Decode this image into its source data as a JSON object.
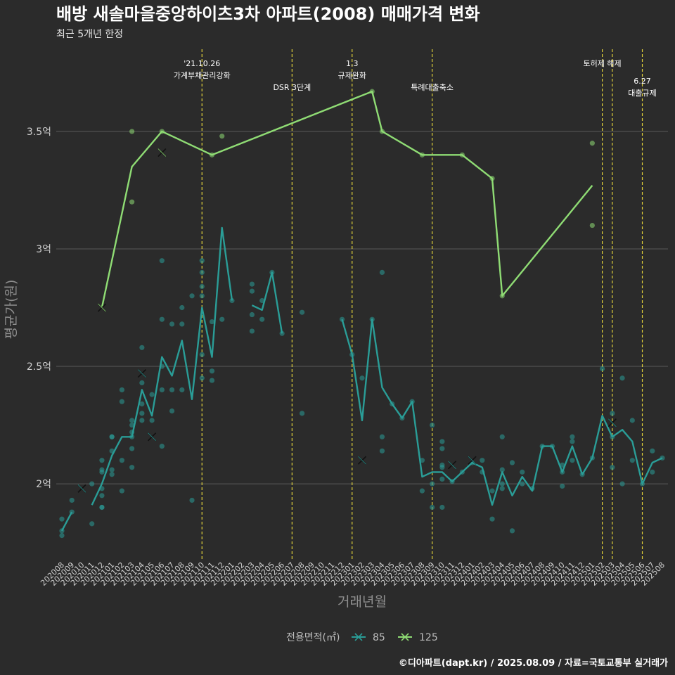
{
  "chart_data": {
    "type": "line",
    "title": "배방 새솔마을중앙하이츠3차 아파트(2008) 매매가격 변화",
    "subtitle": "최근 5개년 한정",
    "xlabel": "거래년월",
    "ylabel": "평균가(원)",
    "ylim": [
      1.68,
      3.85
    ],
    "grid": true,
    "yticks": [
      {
        "v": 2.0,
        "label": "2억"
      },
      {
        "v": 2.5,
        "label": "2.5억"
      },
      {
        "v": 3.0,
        "label": "3억"
      },
      {
        "v": 3.5,
        "label": "3.5억"
      }
    ],
    "x_start": "202008",
    "month_count": 61,
    "x_labels": [
      "202008",
      "202009",
      "202010",
      "202011",
      "202012",
      "202101",
      "202102",
      "202103",
      "202104",
      "202105",
      "202106",
      "202107",
      "202108",
      "202109",
      "202110",
      "202111",
      "202112",
      "202201",
      "202202",
      "202203",
      "202204",
      "202205",
      "202206",
      "202207",
      "202208",
      "202209",
      "202210",
      "202211",
      "202212",
      "202301",
      "202302",
      "202303",
      "202304",
      "202305",
      "202306",
      "202307",
      "202308",
      "202309",
      "202310",
      "202311",
      "202312",
      "202401",
      "202402",
      "202403",
      "202404",
      "202405",
      "202406",
      "202407",
      "202408",
      "202409",
      "202410",
      "202411",
      "202412",
      "202501",
      "202502",
      "202503",
      "202504",
      "202505",
      "202506",
      "202507",
      "202508"
    ],
    "legend": {
      "title": "전용면적(㎡)",
      "placement": "bottom",
      "entries": [
        {
          "label": "85",
          "color": "#2a9d97"
        },
        {
          "label": "125",
          "color": "#8fdc74"
        }
      ]
    },
    "events": [
      {
        "x": "202110",
        "lines": [
          "'21.10.26",
          "가계부채관리강화"
        ],
        "row": 0
      },
      {
        "x": "202207",
        "lines": [
          "DSR 3단계"
        ],
        "row": 1
      },
      {
        "x": "202301",
        "lines": [
          "1.3",
          "규제완화"
        ],
        "row": 0
      },
      {
        "x": "202309",
        "lines": [
          "특례대출축소"
        ],
        "row": 1
      },
      {
        "x": "202502",
        "lines": [
          "토허제 해제"
        ],
        "row": 0
      },
      {
        "x": "202503",
        "lines": [
          ""
        ],
        "row": 0
      },
      {
        "x": "202506",
        "lines": [
          "6.27",
          "대출규제"
        ],
        "row": 2
      }
    ],
    "series": [
      {
        "name": "85",
        "color": "#2a9d97",
        "line": [
          [
            [
              "202008",
              1.8
            ],
            [
              "202009",
              1.88
            ]
          ],
          [
            [
              "202011",
              1.91
            ],
            [
              "202012",
              2.0
            ],
            [
              "202101",
              2.12
            ],
            [
              "202102",
              2.2
            ],
            [
              "202103",
              2.2
            ],
            [
              "202104",
              2.4
            ],
            [
              "202105",
              2.29
            ],
            [
              "202106",
              2.54
            ],
            [
              "202107",
              2.46
            ],
            [
              "202108",
              2.61
            ],
            [
              "202109",
              2.36
            ],
            [
              "202110",
              2.75
            ],
            [
              "202111",
              2.54
            ],
            [
              "202112",
              3.09
            ],
            [
              "202201",
              2.78
            ]
          ],
          [
            [
              "202203",
              2.76
            ],
            [
              "202204",
              2.74
            ],
            [
              "202205",
              2.9
            ],
            [
              "202206",
              2.64
            ]
          ],
          [
            [
              "202212",
              2.7
            ],
            [
              "202301",
              2.55
            ],
            [
              "202302",
              2.27
            ],
            [
              "202303",
              2.7
            ],
            [
              "202304",
              2.41
            ],
            [
              "202305",
              2.34
            ],
            [
              "202306",
              2.28
            ],
            [
              "202307",
              2.35
            ],
            [
              "202308",
              2.03
            ],
            [
              "202309",
              2.05
            ],
            [
              "202310",
              2.05
            ],
            [
              "202311",
              2.01
            ],
            [
              "202312",
              2.05
            ],
            [
              "202401",
              2.09
            ],
            [
              "202402",
              2.07
            ],
            [
              "202403",
              1.91
            ],
            [
              "202404",
              2.05
            ],
            [
              "202405",
              1.95
            ],
            [
              "202406",
              2.03
            ],
            [
              "202407",
              1.97
            ],
            [
              "202408",
              2.16
            ],
            [
              "202409",
              2.16
            ],
            [
              "202410",
              2.05
            ],
            [
              "202411",
              2.16
            ],
            [
              "202412",
              2.04
            ],
            [
              "202501",
              2.11
            ],
            [
              "202502",
              2.29
            ],
            [
              "202503",
              2.2
            ],
            [
              "202504",
              2.23
            ],
            [
              "202505",
              2.18
            ],
            [
              "202506",
              2.0
            ],
            [
              "202507",
              2.09
            ],
            [
              "202508",
              2.11
            ]
          ]
        ],
        "points": [
          [
            "202008",
            1.78
          ],
          [
            "202008",
            1.8
          ],
          [
            "202008",
            1.85
          ],
          [
            "202009",
            1.88
          ],
          [
            "202009",
            1.93
          ],
          [
            "202011",
            2.0
          ],
          [
            "202011",
            1.83
          ],
          [
            "202012",
            1.9
          ],
          [
            "202012",
            1.9
          ],
          [
            "202012",
            1.95
          ],
          [
            "202012",
            1.98
          ],
          [
            "202012",
            2.05
          ],
          [
            "202012",
            2.06
          ],
          [
            "202012",
            2.1
          ],
          [
            "202101",
            2.04
          ],
          [
            "202101",
            2.06
          ],
          [
            "202101",
            2.14
          ],
          [
            "202101",
            2.2
          ],
          [
            "202101",
            2.2
          ],
          [
            "202102",
            1.97
          ],
          [
            "202102",
            2.1
          ],
          [
            "202102",
            2.35
          ],
          [
            "202102",
            2.4
          ],
          [
            "202103",
            2.07
          ],
          [
            "202103",
            2.15
          ],
          [
            "202103",
            2.2
          ],
          [
            "202103",
            2.22
          ],
          [
            "202103",
            2.25
          ],
          [
            "202103",
            2.27
          ],
          [
            "202104",
            2.27
          ],
          [
            "202104",
            2.3
          ],
          [
            "202104",
            2.34
          ],
          [
            "202104",
            2.43
          ],
          [
            "202104",
            2.58
          ],
          [
            "202105",
            2.27
          ],
          [
            "202105",
            2.38
          ],
          [
            "202106",
            2.16
          ],
          [
            "202106",
            2.4
          ],
          [
            "202106",
            2.5
          ],
          [
            "202106",
            2.7
          ],
          [
            "202106",
            2.95
          ],
          [
            "202107",
            2.31
          ],
          [
            "202107",
            2.4
          ],
          [
            "202107",
            2.68
          ],
          [
            "202108",
            2.4
          ],
          [
            "202108",
            2.68
          ],
          [
            "202108",
            2.75
          ],
          [
            "202109",
            1.93
          ],
          [
            "202109",
            2.8
          ],
          [
            "202110",
            2.45
          ],
          [
            "202110",
            2.55
          ],
          [
            "202110",
            2.8
          ],
          [
            "202110",
            2.84
          ],
          [
            "202110",
            2.9
          ],
          [
            "202110",
            2.95
          ],
          [
            "202111",
            2.44
          ],
          [
            "202111",
            2.48
          ],
          [
            "202111",
            2.69
          ],
          [
            "202112",
            2.7
          ],
          [
            "202201",
            2.78
          ],
          [
            "202203",
            2.65
          ],
          [
            "202203",
            2.72
          ],
          [
            "202203",
            2.82
          ],
          [
            "202203",
            2.85
          ],
          [
            "202204",
            2.7
          ],
          [
            "202204",
            2.78
          ],
          [
            "202205",
            2.9
          ],
          [
            "202206",
            2.64
          ],
          [
            "202208",
            2.3
          ],
          [
            "202208",
            2.73
          ],
          [
            "202212",
            2.7
          ],
          [
            "202301",
            2.55
          ],
          [
            "202302",
            2.45
          ],
          [
            "202303",
            2.7
          ],
          [
            "202304",
            2.14
          ],
          [
            "202304",
            2.2
          ],
          [
            "202304",
            2.9
          ],
          [
            "202305",
            2.34
          ],
          [
            "202306",
            2.28
          ],
          [
            "202307",
            2.35
          ],
          [
            "202308",
            1.97
          ],
          [
            "202308",
            2.1
          ],
          [
            "202309",
            1.9
          ],
          [
            "202309",
            2.0
          ],
          [
            "202309",
            2.25
          ],
          [
            "202310",
            1.9
          ],
          [
            "202310",
            2.02
          ],
          [
            "202310",
            2.07
          ],
          [
            "202310",
            2.08
          ],
          [
            "202310",
            2.15
          ],
          [
            "202310",
            2.18
          ],
          [
            "202311",
            2.01
          ],
          [
            "202312",
            2.05
          ],
          [
            "202401",
            2.09
          ],
          [
            "202402",
            2.05
          ],
          [
            "202402",
            2.1
          ],
          [
            "202403",
            1.85
          ],
          [
            "202403",
            1.97
          ],
          [
            "202404",
            1.98
          ],
          [
            "202404",
            2.0
          ],
          [
            "202404",
            2.06
          ],
          [
            "202404",
            2.2
          ],
          [
            "202405",
            1.8
          ],
          [
            "202405",
            2.09
          ],
          [
            "202406",
            2.0
          ],
          [
            "202406",
            2.05
          ],
          [
            "202407",
            1.98
          ],
          [
            "202408",
            2.16
          ],
          [
            "202409",
            2.16
          ],
          [
            "202410",
            1.99
          ],
          [
            "202410",
            2.05
          ],
          [
            "202410",
            2.08
          ],
          [
            "202411",
            2.1
          ],
          [
            "202411",
            2.18
          ],
          [
            "202411",
            2.2
          ],
          [
            "202412",
            2.04
          ],
          [
            "202501",
            2.11
          ],
          [
            "202502",
            2.49
          ],
          [
            "202503",
            2.07
          ],
          [
            "202503",
            2.2
          ],
          [
            "202503",
            2.3
          ],
          [
            "202504",
            2.0
          ],
          [
            "202504",
            2.45
          ],
          [
            "202505",
            2.1
          ],
          [
            "202505",
            2.27
          ],
          [
            "202506",
            2.0
          ],
          [
            "202507",
            2.05
          ],
          [
            "202507",
            2.14
          ],
          [
            "202508",
            2.11
          ]
        ],
        "cross": [
          [
            "202010",
            1.98
          ],
          [
            "202104",
            2.47
          ],
          [
            "202105",
            2.2
          ],
          [
            "202302",
            2.1
          ],
          [
            "202311",
            2.08
          ],
          [
            "202401",
            2.1
          ],
          [
            "202503",
            2.26
          ]
        ]
      },
      {
        "name": "125",
        "color": "#8fdc74",
        "line": [
          [
            [
              "202012",
              2.75
            ],
            [
              "202103",
              3.35
            ],
            [
              "202106",
              3.5
            ],
            [
              "202111",
              3.4
            ],
            [
              "202303",
              3.67
            ],
            [
              "202304",
              3.5
            ],
            [
              "202308",
              3.4
            ],
            [
              "202312",
              3.4
            ],
            [
              "202403",
              3.3
            ],
            [
              "202404",
              2.8
            ],
            [
              "202501",
              3.27
            ]
          ]
        ],
        "points": [
          [
            "202103",
            3.2
          ],
          [
            "202103",
            3.5
          ],
          [
            "202106",
            3.5
          ],
          [
            "202111",
            3.4
          ],
          [
            "202112",
            3.48
          ],
          [
            "202303",
            3.67
          ],
          [
            "202304",
            3.5
          ],
          [
            "202308",
            3.4
          ],
          [
            "202312",
            3.4
          ],
          [
            "202403",
            3.3
          ],
          [
            "202404",
            2.8
          ],
          [
            "202501",
            3.1
          ],
          [
            "202501",
            3.45
          ]
        ],
        "cross": [
          [
            "202012",
            2.75
          ],
          [
            "202106",
            3.41
          ]
        ]
      }
    ]
  },
  "caption": "©디아파트(dapt.kr) / 2025.08.09 / 자료=국토교통부 실거래가",
  "colors": {
    "background": "#2b2b2b",
    "grid": "#5a5a5a",
    "event_line": "#e3d33a"
  }
}
